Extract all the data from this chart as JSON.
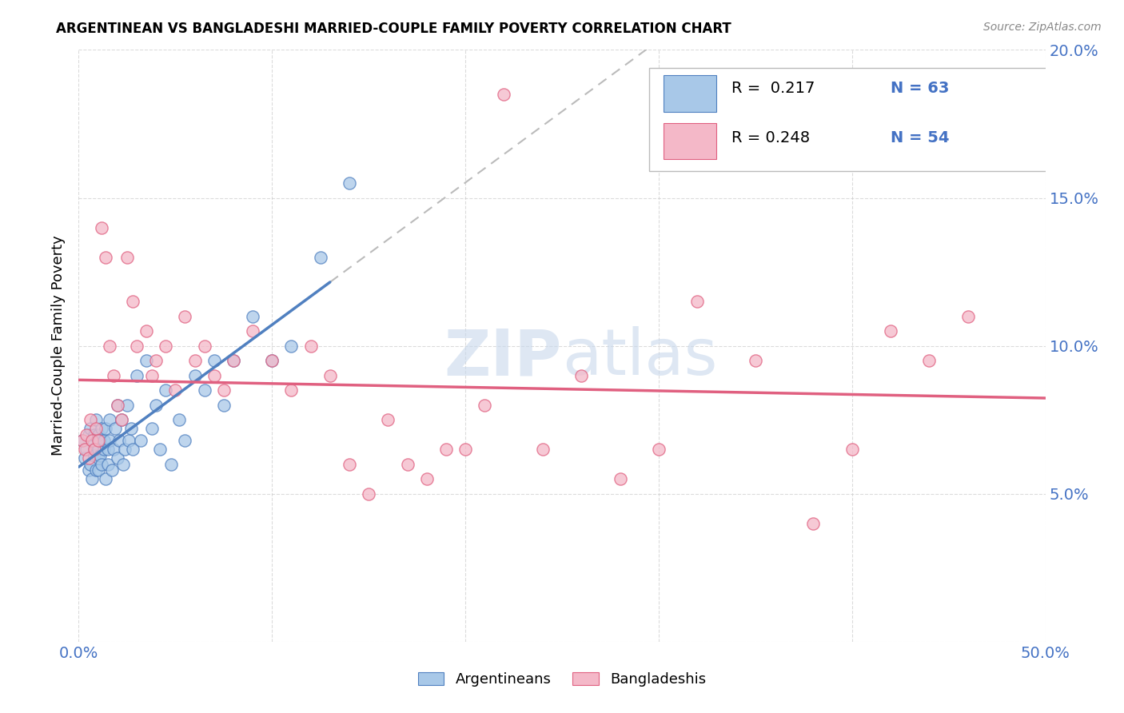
{
  "title": "ARGENTINEAN VS BANGLADESHI MARRIED-COUPLE FAMILY POVERTY CORRELATION CHART",
  "source": "Source: ZipAtlas.com",
  "ylabel": "Married-Couple Family Poverty",
  "xlim": [
    0,
    0.5
  ],
  "ylim": [
    0,
    0.2
  ],
  "xticks": [
    0.0,
    0.1,
    0.2,
    0.3,
    0.4,
    0.5
  ],
  "yticks": [
    0.0,
    0.05,
    0.1,
    0.15,
    0.2
  ],
  "xticklabels": [
    "0.0%",
    "",
    "",
    "",
    "",
    "50.0%"
  ],
  "yticklabels_right": [
    "",
    "5.0%",
    "10.0%",
    "15.0%",
    "20.0%"
  ],
  "legend_labels": [
    "Argentineans",
    "Bangladeshis"
  ],
  "color_arg": "#A8C8E8",
  "color_ban": "#F4B8C8",
  "color_line_arg": "#5080C0",
  "color_line_ban": "#E06080",
  "color_dashed": "#BBBBBB",
  "watermark": "ZIPatlas",
  "watermark_color": "#C8D8EC",
  "arg_x": [
    0.002,
    0.003,
    0.004,
    0.005,
    0.005,
    0.006,
    0.006,
    0.007,
    0.007,
    0.008,
    0.008,
    0.008,
    0.009,
    0.009,
    0.01,
    0.01,
    0.01,
    0.01,
    0.011,
    0.011,
    0.012,
    0.012,
    0.013,
    0.013,
    0.014,
    0.014,
    0.015,
    0.015,
    0.016,
    0.016,
    0.017,
    0.018,
    0.019,
    0.02,
    0.02,
    0.021,
    0.022,
    0.023,
    0.024,
    0.025,
    0.026,
    0.027,
    0.028,
    0.03,
    0.032,
    0.035,
    0.038,
    0.04,
    0.042,
    0.045,
    0.048,
    0.052,
    0.055,
    0.06,
    0.065,
    0.07,
    0.075,
    0.08,
    0.09,
    0.1,
    0.11,
    0.125,
    0.14
  ],
  "arg_y": [
    0.068,
    0.062,
    0.065,
    0.07,
    0.058,
    0.072,
    0.06,
    0.068,
    0.055,
    0.065,
    0.063,
    0.07,
    0.058,
    0.075,
    0.065,
    0.062,
    0.07,
    0.058,
    0.068,
    0.063,
    0.072,
    0.06,
    0.065,
    0.068,
    0.055,
    0.072,
    0.06,
    0.065,
    0.068,
    0.075,
    0.058,
    0.065,
    0.072,
    0.08,
    0.062,
    0.068,
    0.075,
    0.06,
    0.065,
    0.08,
    0.068,
    0.072,
    0.065,
    0.09,
    0.068,
    0.095,
    0.072,
    0.08,
    0.065,
    0.085,
    0.06,
    0.075,
    0.068,
    0.09,
    0.085,
    0.095,
    0.08,
    0.095,
    0.11,
    0.095,
    0.1,
    0.13,
    0.155
  ],
  "ban_x": [
    0.002,
    0.003,
    0.004,
    0.005,
    0.006,
    0.007,
    0.008,
    0.009,
    0.01,
    0.012,
    0.014,
    0.016,
    0.018,
    0.02,
    0.022,
    0.025,
    0.028,
    0.03,
    0.035,
    0.038,
    0.04,
    0.045,
    0.05,
    0.055,
    0.06,
    0.065,
    0.07,
    0.075,
    0.08,
    0.09,
    0.1,
    0.11,
    0.12,
    0.13,
    0.14,
    0.15,
    0.16,
    0.17,
    0.18,
    0.19,
    0.2,
    0.21,
    0.22,
    0.24,
    0.26,
    0.28,
    0.3,
    0.32,
    0.35,
    0.38,
    0.4,
    0.42,
    0.44,
    0.46
  ],
  "ban_y": [
    0.068,
    0.065,
    0.07,
    0.062,
    0.075,
    0.068,
    0.065,
    0.072,
    0.068,
    0.14,
    0.13,
    0.1,
    0.09,
    0.08,
    0.075,
    0.13,
    0.115,
    0.1,
    0.105,
    0.09,
    0.095,
    0.1,
    0.085,
    0.11,
    0.095,
    0.1,
    0.09,
    0.085,
    0.095,
    0.105,
    0.095,
    0.085,
    0.1,
    0.09,
    0.06,
    0.05,
    0.075,
    0.06,
    0.055,
    0.065,
    0.065,
    0.08,
    0.185,
    0.065,
    0.09,
    0.055,
    0.065,
    0.115,
    0.095,
    0.04,
    0.065,
    0.105,
    0.095,
    0.11
  ]
}
